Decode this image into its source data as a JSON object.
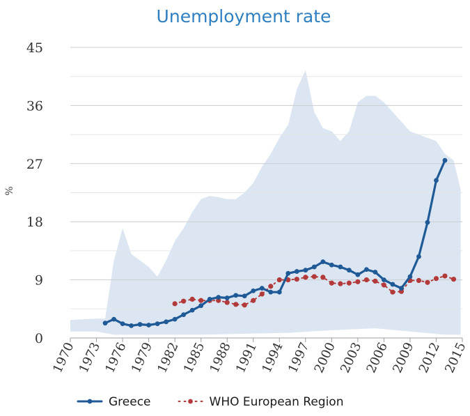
{
  "chart_data": {
    "type": "line",
    "title": "Unemployment rate",
    "xlabel": "",
    "ylabel": "%",
    "xlim": [
      1970,
      2015
    ],
    "ylim": [
      0,
      45
    ],
    "yticks": [
      0,
      9,
      18,
      27,
      36,
      45
    ],
    "xticks": [
      1970,
      1973,
      1976,
      1979,
      1982,
      1985,
      1988,
      1991,
      1994,
      1997,
      2000,
      2003,
      2006,
      2009,
      2012,
      2015
    ],
    "grid": true,
    "legend": "bottom",
    "band": {
      "upper": [
        [
          1970,
          2.8
        ],
        [
          1973,
          3.0
        ],
        [
          1974,
          3.0
        ],
        [
          1975,
          12.0
        ],
        [
          1976,
          17.0
        ],
        [
          1977,
          13.0
        ],
        [
          1978,
          12.0
        ],
        [
          1979,
          11.0
        ],
        [
          1980,
          9.5
        ],
        [
          1981,
          12.0
        ],
        [
          1982,
          15.0
        ],
        [
          1983,
          17.0
        ],
        [
          1984,
          19.5
        ],
        [
          1985,
          21.5
        ],
        [
          1986,
          22.0
        ],
        [
          1987,
          21.8
        ],
        [
          1988,
          21.5
        ],
        [
          1989,
          21.5
        ],
        [
          1990,
          22.5
        ],
        [
          1991,
          24.0
        ],
        [
          1992,
          26.5
        ],
        [
          1993,
          28.5
        ],
        [
          1994,
          31.0
        ],
        [
          1995,
          33.0
        ],
        [
          1996,
          38.5
        ],
        [
          1997,
          41.5
        ],
        [
          1998,
          35.0
        ],
        [
          1999,
          32.5
        ],
        [
          2000,
          32.0
        ],
        [
          2001,
          30.5
        ],
        [
          2002,
          32.0
        ],
        [
          2003,
          36.5
        ],
        [
          2004,
          37.5
        ],
        [
          2005,
          37.5
        ],
        [
          2006,
          36.5
        ],
        [
          2007,
          35.0
        ],
        [
          2008,
          33.5
        ],
        [
          2009,
          32.0
        ],
        [
          2010,
          31.5
        ],
        [
          2011,
          31.0
        ],
        [
          2012,
          30.5
        ],
        [
          2013,
          28.5
        ],
        [
          2014,
          27.5
        ],
        [
          2014.8,
          23.0
        ]
      ],
      "lower": [
        [
          1970,
          1.0
        ],
        [
          1973,
          1.0
        ],
        [
          1975,
          0.5
        ],
        [
          1985,
          0.5
        ],
        [
          1995,
          0.8
        ],
        [
          2000,
          1.2
        ],
        [
          2005,
          1.5
        ],
        [
          2009,
          1.0
        ],
        [
          2013,
          0.5
        ],
        [
          2014.8,
          0.5
        ]
      ],
      "color": "#dce6f2"
    },
    "series": [
      {
        "name": "Greece",
        "color": "#1f5a96",
        "style": "solid",
        "x": [
          1974,
          1975,
          1976,
          1977,
          1978,
          1979,
          1980,
          1981,
          1982,
          1983,
          1984,
          1985,
          1986,
          1987,
          1988,
          1989,
          1990,
          1991,
          1992,
          1993,
          1994,
          1995,
          1996,
          1997,
          1998,
          1999,
          2000,
          2001,
          2002,
          2003,
          2004,
          2005,
          2006,
          2007,
          2008,
          2009,
          2010,
          2011,
          2012,
          2013
        ],
        "values": [
          2.3,
          2.9,
          2.2,
          1.9,
          2.1,
          2.0,
          2.2,
          2.5,
          2.9,
          3.6,
          4.3,
          5.0,
          6.0,
          6.3,
          6.2,
          6.6,
          6.5,
          7.3,
          7.7,
          7.1,
          7.1,
          10.0,
          10.3,
          10.5,
          11.0,
          11.8,
          11.3,
          11.0,
          10.5,
          9.8,
          10.6,
          10.2,
          9.0,
          8.3,
          7.7,
          9.5,
          12.6,
          17.9,
          24.4,
          27.5
        ]
      },
      {
        "name": "WHO European Region",
        "color": "#b33a3a",
        "style": "dotted",
        "x": [
          1982,
          1983,
          1984,
          1985,
          1986,
          1987,
          1988,
          1989,
          1990,
          1991,
          1992,
          1993,
          1994,
          1995,
          1996,
          1997,
          1998,
          1999,
          2000,
          2001,
          2002,
          2003,
          2004,
          2005,
          2006,
          2007,
          2008,
          2009,
          2010,
          2011,
          2012,
          2013,
          2014
        ],
        "values": [
          5.3,
          5.7,
          6.0,
          5.8,
          5.8,
          5.8,
          5.5,
          5.2,
          5.1,
          5.8,
          6.8,
          8.0,
          9.0,
          9.0,
          9.1,
          9.4,
          9.5,
          9.4,
          8.5,
          8.4,
          8.5,
          8.7,
          9.0,
          8.8,
          8.2,
          7.1,
          7.2,
          8.9,
          8.9,
          8.6,
          9.2,
          9.6,
          9.1
        ]
      }
    ]
  }
}
